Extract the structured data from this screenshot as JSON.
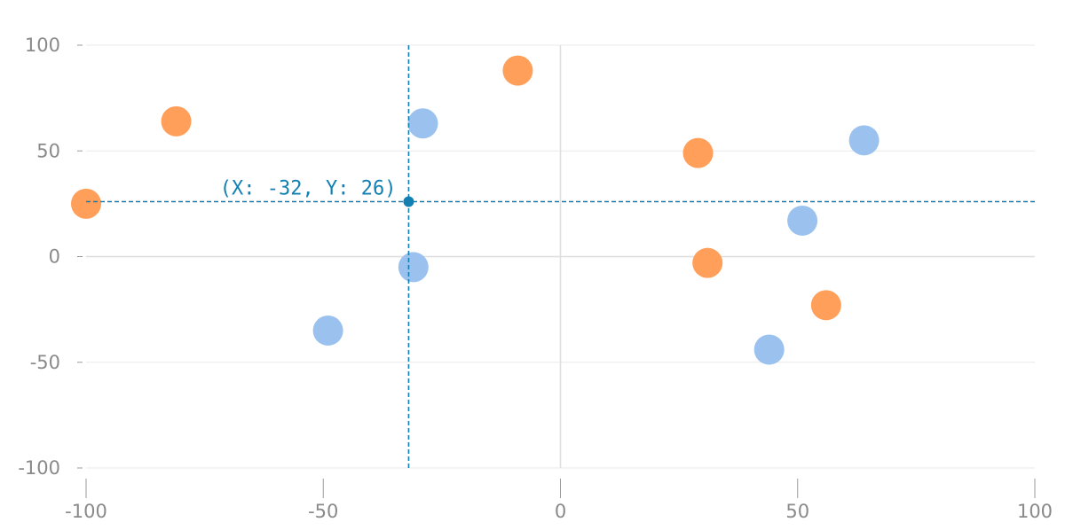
{
  "chart_data": {
    "type": "scatter",
    "xlim": [
      -100,
      100
    ],
    "ylim": [
      -100,
      100
    ],
    "x_ticks": [
      -100,
      -50,
      0,
      50,
      100
    ],
    "y_ticks": [
      100,
      50,
      0,
      -50,
      -100
    ],
    "x_tick_labels": [
      "-100",
      "-50",
      "0",
      "50",
      "100"
    ],
    "y_tick_labels": [
      "100",
      "50",
      "0",
      "-50",
      "-100"
    ],
    "grid": true,
    "legend": "none",
    "series": [
      {
        "color": "#ff9f5a",
        "points": [
          {
            "x": -100,
            "y": 25
          },
          {
            "x": -81,
            "y": 64
          },
          {
            "x": -9,
            "y": 88
          },
          {
            "x": 29,
            "y": 49
          },
          {
            "x": 31,
            "y": -3
          },
          {
            "x": 56,
            "y": -23
          }
        ]
      },
      {
        "color": "#9bc2ef",
        "points": [
          {
            "x": -29,
            "y": 63
          },
          {
            "x": -31,
            "y": -5
          },
          {
            "x": -49,
            "y": -35
          },
          {
            "x": 44,
            "y": -44
          },
          {
            "x": 51,
            "y": 17
          },
          {
            "x": 64,
            "y": 55
          }
        ]
      }
    ],
    "crosshair": {
      "x": -32,
      "y": 26,
      "label": "(X: -32, Y: 26)",
      "color": "#1280b3"
    }
  }
}
